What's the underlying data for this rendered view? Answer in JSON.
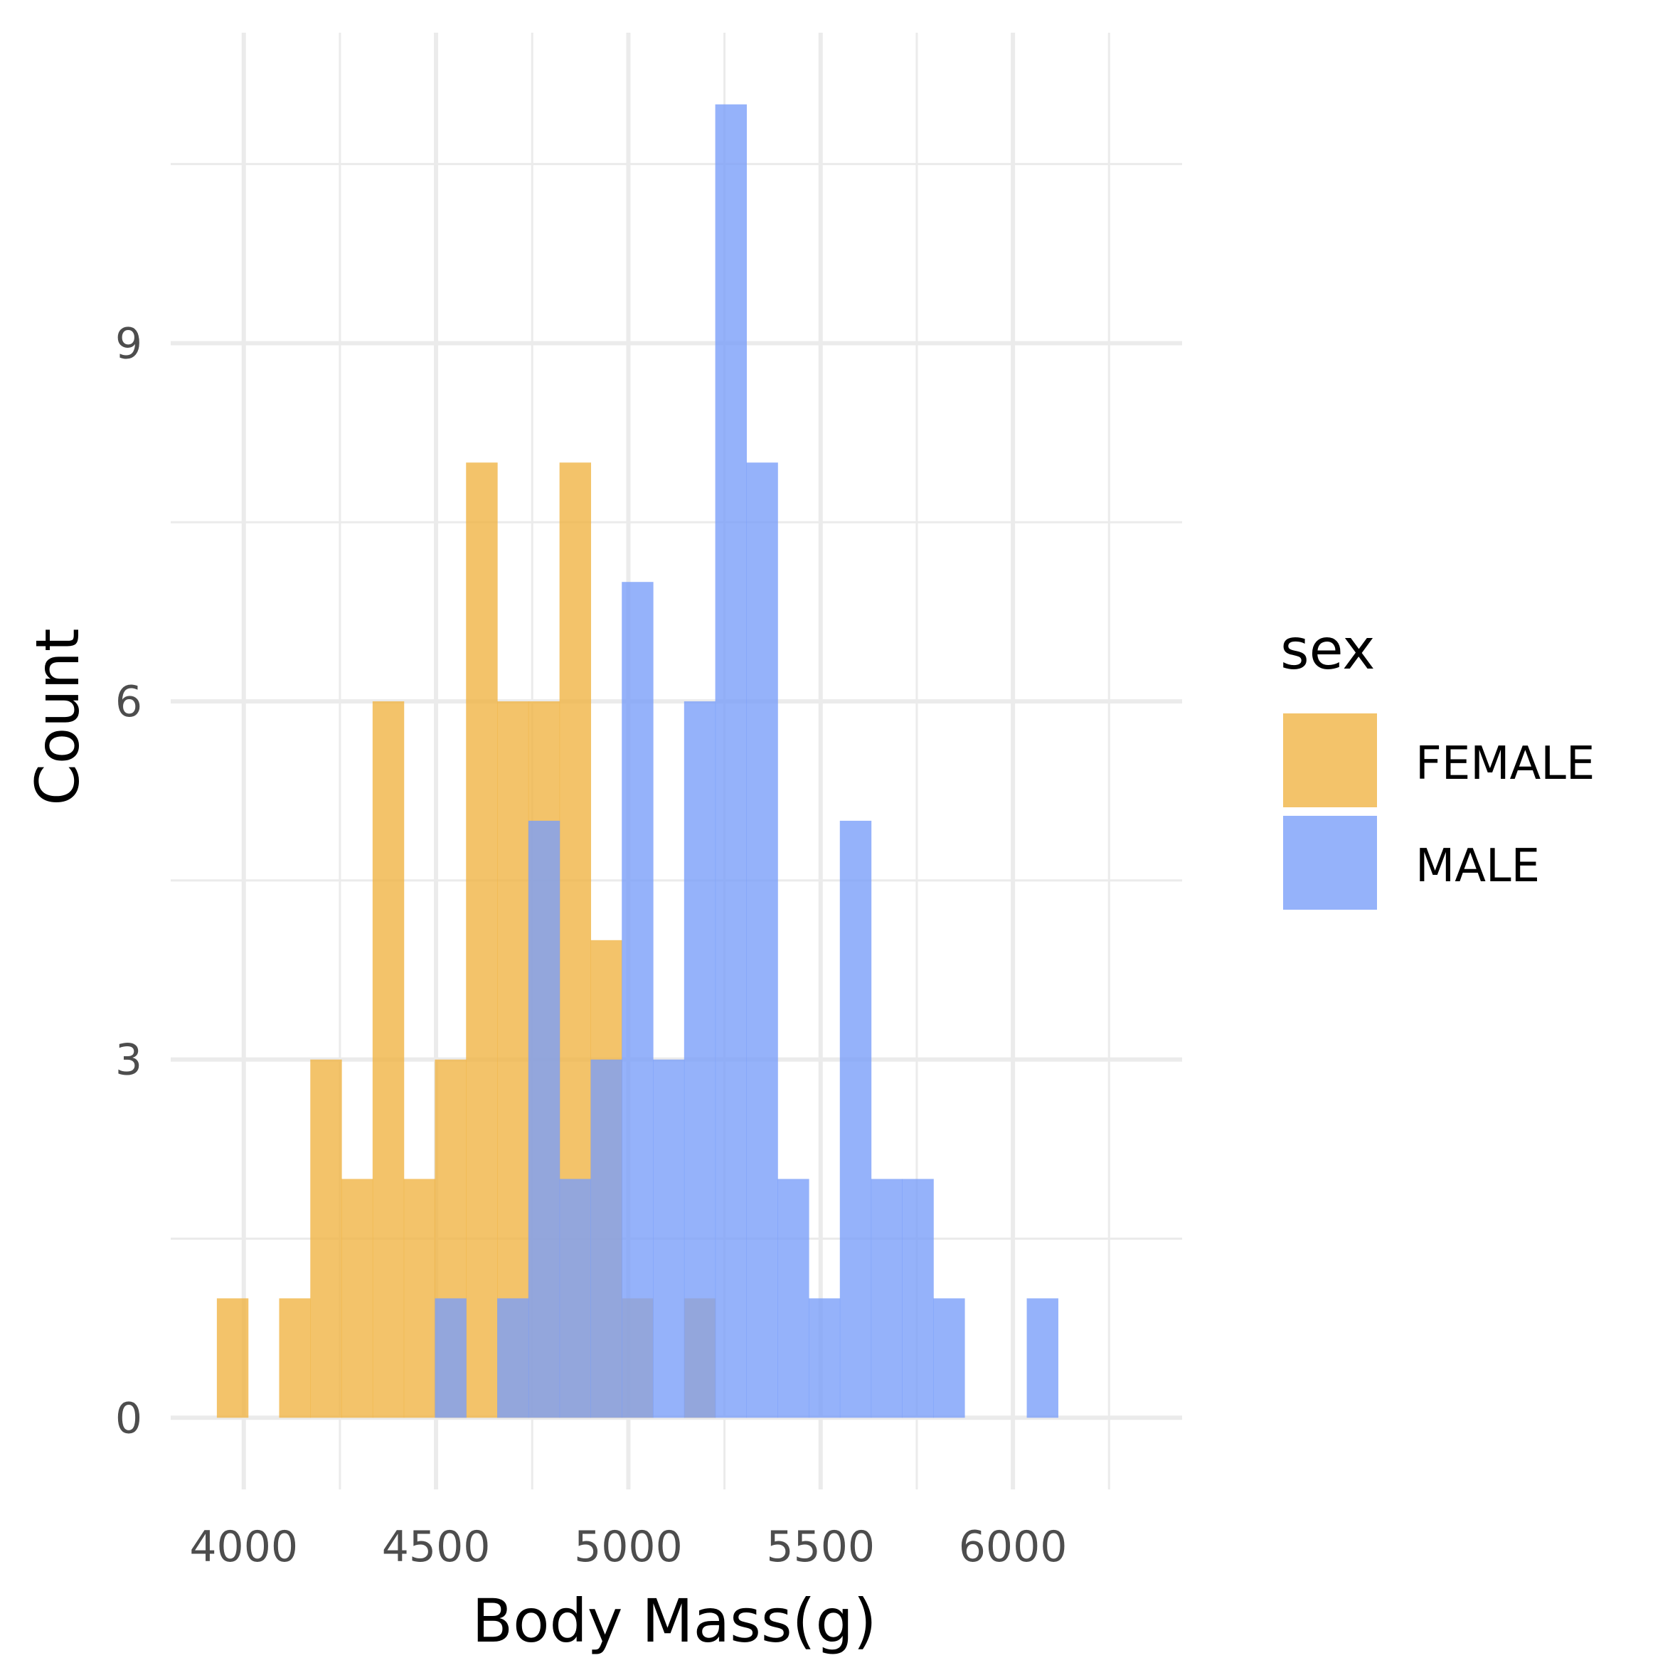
{
  "chart_data": {
    "type": "bar",
    "subtype": "overlapping histogram",
    "xlabel": "Body Mass(g)",
    "ylabel": "Count",
    "xlim": [
      3810,
      6440
    ],
    "ylim": [
      -0.6,
      11.6
    ],
    "x_ticks": [
      4000,
      4500,
      5000,
      5500,
      6000
    ],
    "x_tick_labels": [
      "4000",
      "4500",
      "5000",
      "5500",
      "6000"
    ],
    "y_ticks": [
      0,
      3,
      6,
      9
    ],
    "y_tick_labels": [
      "0",
      "3",
      "6",
      "9"
    ],
    "x_minor_breaks": [
      4250,
      4750,
      5250,
      5750,
      6250
    ],
    "y_minor_breaks": [
      1.5,
      4.5,
      7.5,
      10.5
    ],
    "grid": true,
    "bin_width": 81,
    "bin_start": 3930,
    "legend": {
      "title": "sex",
      "position": "right"
    },
    "series": [
      {
        "name": "FEMALE",
        "color": "#f0b445",
        "counts": [
          1,
          0,
          1,
          3,
          2,
          6,
          2,
          3,
          8,
          6,
          6,
          8,
          4,
          1,
          0,
          1
        ]
      },
      {
        "name": "MALE",
        "color": "#7b9ff9",
        "counts": [
          0,
          0,
          0,
          0,
          0,
          0,
          0,
          1,
          0,
          1,
          5,
          2,
          3,
          7,
          3,
          6,
          11,
          8,
          2,
          1,
          5,
          2,
          2,
          1,
          0,
          0,
          1
        ]
      }
    ],
    "opacity": 0.8
  }
}
